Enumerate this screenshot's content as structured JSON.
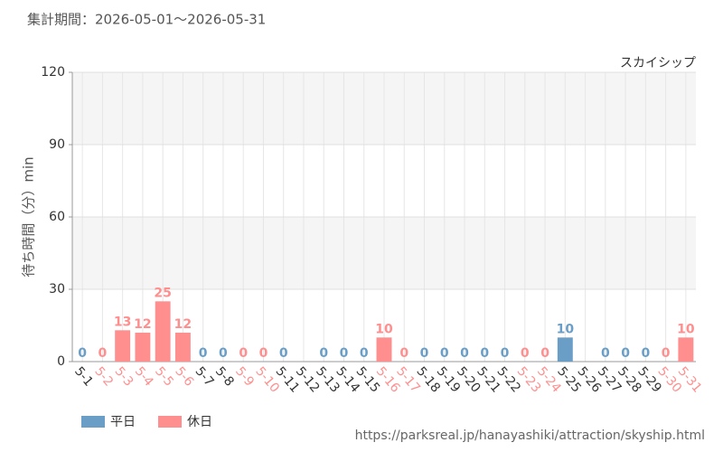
{
  "chart_data": {
    "type": "bar",
    "header": "集計期間：2026-05-01～2026-05-31",
    "title": "スカイシップ",
    "y_label": "待ち時間（分）min",
    "source": "https://parksreal.jp/hanayashiki/attraction/skyship.html",
    "categories": [
      "5-1",
      "5-2",
      "5-3",
      "5-4",
      "5-5",
      "5-6",
      "5-7",
      "5-8",
      "5-9",
      "5-10",
      "5-11",
      "5-12",
      "5-13",
      "5-14",
      "5-15",
      "5-16",
      "5-17",
      "5-18",
      "5-19",
      "5-20",
      "5-21",
      "5-22",
      "5-23",
      "5-24",
      "5-25",
      "5-26",
      "5-27",
      "5-28",
      "5-29",
      "5-30",
      "5-31"
    ],
    "series": [
      {
        "name": "平日",
        "color": "#6a9ec7",
        "values": [
          0,
          null,
          null,
          null,
          null,
          null,
          0,
          0,
          null,
          null,
          0,
          null,
          0,
          0,
          0,
          null,
          null,
          0,
          0,
          0,
          0,
          0,
          null,
          null,
          10,
          null,
          0,
          0,
          0,
          null,
          null
        ]
      },
      {
        "name": "休日",
        "color": "#ff8f8f",
        "values": [
          null,
          0,
          13,
          12,
          25,
          12,
          null,
          null,
          0,
          0,
          null,
          null,
          null,
          null,
          null,
          10,
          0,
          null,
          null,
          null,
          null,
          null,
          0,
          0,
          null,
          null,
          null,
          null,
          null,
          0,
          10
        ]
      }
    ],
    "ylim": [
      0,
      120
    ],
    "yticks": [
      0,
      30,
      60,
      90,
      120
    ],
    "grid": true
  }
}
